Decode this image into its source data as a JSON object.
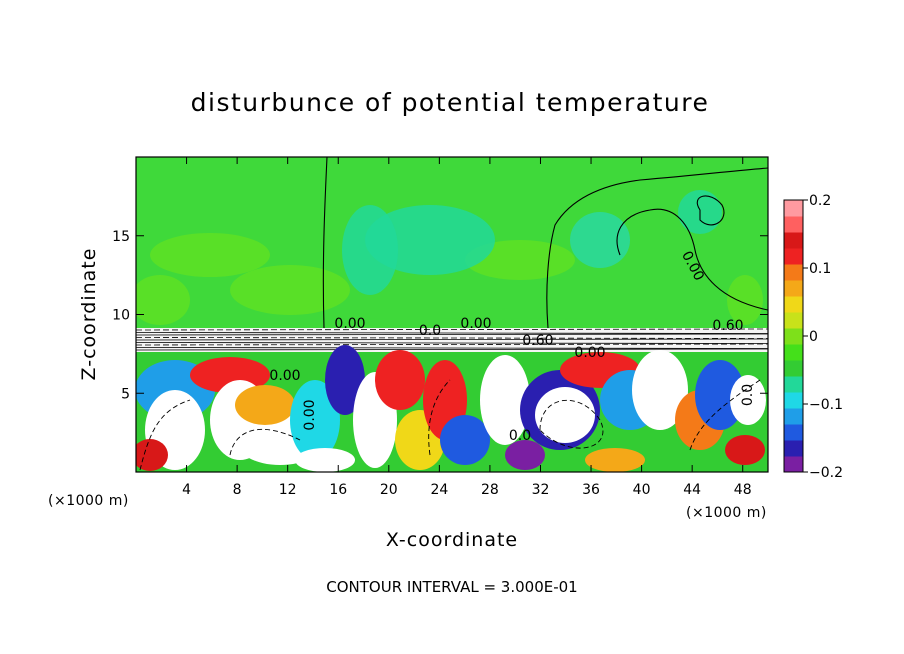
{
  "chart_data": {
    "type": "heatmap",
    "title": "disturbunce of potential temperature",
    "xlabel": "X-coordinate",
    "ylabel": "Z-coordinate",
    "x_unit": "(×1000 m)",
    "z_unit": "(×1000 m)",
    "x_range": [
      0,
      50
    ],
    "z_range": [
      0,
      20
    ],
    "x_ticks": [
      4,
      8,
      12,
      16,
      20,
      24,
      28,
      32,
      36,
      40,
      44,
      48
    ],
    "z_ticks": [
      5,
      10,
      15
    ],
    "colorbar": {
      "range": [
        -0.2,
        0.2
      ],
      "ticks": [
        0.2,
        0.1,
        0,
        -0.1,
        -0.2
      ],
      "tick_labels": [
        "0.2",
        "0.1",
        "0",
        "−0.1",
        "−0.2"
      ],
      "colors": [
        "#7a1fa2",
        "#2a1fb0",
        "#1f5ae0",
        "#1f9ee8",
        "#1fd8e6",
        "#22d899",
        "#33cc33",
        "#44e01a",
        "#7ee01a",
        "#c8e21a",
        "#f0d818",
        "#f4a818",
        "#f47a18",
        "#ee2222",
        "#d81818",
        "#ff6060",
        "#ff9aa0"
      ]
    },
    "contour_interval": "CONTOUR INTERVAL = 3.000E-01",
    "contour_labels": [
      "0.00",
      "0.00",
      "0.00",
      "0.00",
      "0.60",
      "0.00",
      "0.60",
      "0.00",
      "0.0",
      "0.0",
      "0.0"
    ]
  }
}
